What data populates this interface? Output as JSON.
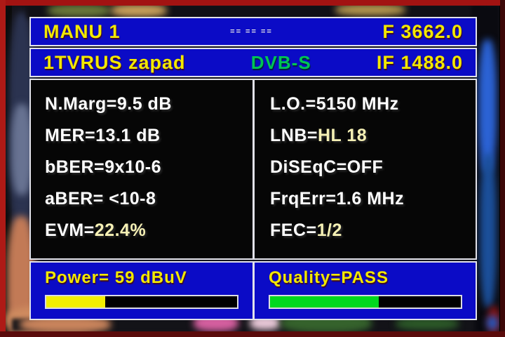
{
  "osd": {
    "header": {
      "mode_label": "MANU 1",
      "status_dashes": "== == ==",
      "frequency": "F 3662.0"
    },
    "channel": {
      "name": "1TVRUS zapad",
      "standard": "DVB-S",
      "if_frequency": "IF 1488.0"
    },
    "measurements": {
      "left": [
        {
          "label": "N.Marg=",
          "value": "9.5 dB"
        },
        {
          "label": "MER=",
          "value": "13.1 dB"
        },
        {
          "label": "bBER=",
          "value": "9x10-6"
        },
        {
          "label": "aBER=",
          "value": " <10-8"
        },
        {
          "label": "EVM=",
          "value": "22.4%"
        }
      ],
      "right": [
        {
          "label": "L.O.=",
          "value": "5150 MHz"
        },
        {
          "label": "LNB=",
          "value": "HL 18"
        },
        {
          "label": "DiSEqC=",
          "value": "OFF"
        },
        {
          "label": "FrqErr=",
          "value": "1.6 MHz"
        },
        {
          "label": "FEC=",
          "value": "1/2"
        }
      ]
    },
    "power": {
      "label": "Power=",
      "value": " 59 dBuV",
      "bar_percent": 31,
      "bar_style": "width:31%"
    },
    "quality": {
      "label": "Quality=",
      "value": "PASS",
      "bar_percent": 57,
      "bar_style": "width:57%"
    },
    "colors": {
      "panel_blue": "#0b0bc6",
      "border_white": "#e2e2ea",
      "accent_yellow": "#f2e800",
      "dvb_green": "#00c455",
      "power_bar_yellow": "#f2ee00",
      "quality_bar_green": "#00d81e",
      "value_white": "#ffffff",
      "value_pale_yellow": "#f5f0b4",
      "frame_red": "#a21312"
    }
  }
}
